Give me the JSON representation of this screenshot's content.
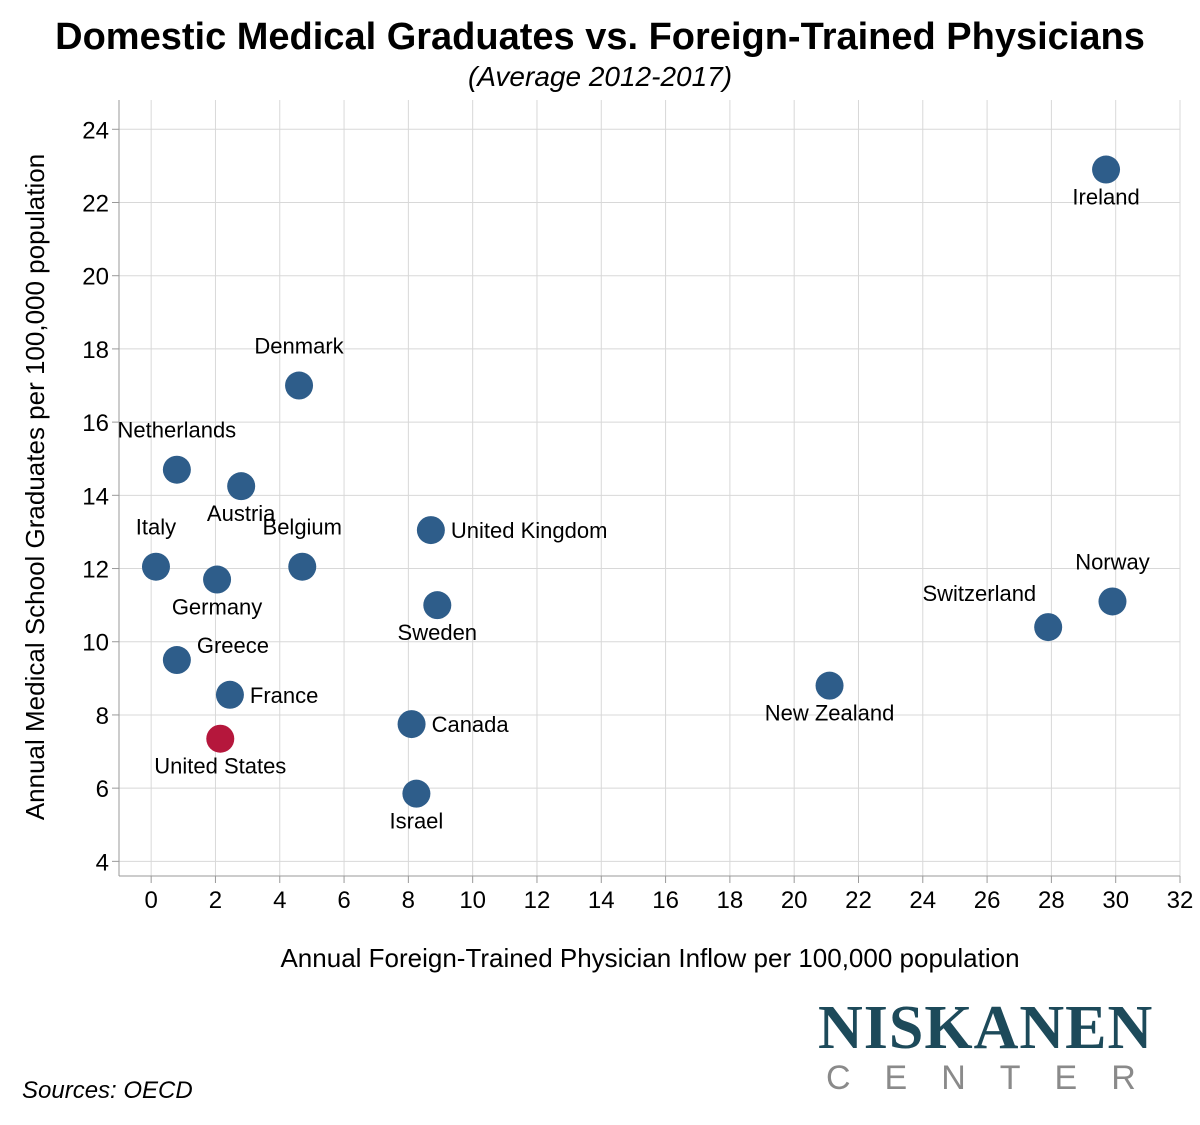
{
  "chart_data": {
    "type": "scatter",
    "title": "Domestic Medical Graduates vs. Foreign-Trained Physicians",
    "subtitle": "(Average 2012-2017)",
    "xlabel": "Annual Foreign-Trained Physician Inflow per 100,000 population",
    "ylabel": "Annual Medical School Graduates per 100,000 population",
    "xlim": [
      -1,
      32
    ],
    "ylim": [
      3.6,
      24.8
    ],
    "xticks": [
      0,
      2,
      4,
      6,
      8,
      10,
      12,
      14,
      16,
      18,
      20,
      22,
      24,
      26,
      28,
      30,
      32
    ],
    "yticks": [
      4,
      6,
      8,
      10,
      12,
      14,
      16,
      18,
      20,
      22,
      24
    ],
    "grid": true,
    "colors": {
      "default": "#2e5d8a",
      "highlight": "#b5173c",
      "grid": "#d8d8d8"
    },
    "points": [
      {
        "label": "Ireland",
        "x": 29.7,
        "y": 22.9,
        "label_pos": "below"
      },
      {
        "label": "Denmark",
        "x": 4.6,
        "y": 17.0,
        "label_pos": "above"
      },
      {
        "label": "Netherlands",
        "x": 0.8,
        "y": 14.7,
        "label_pos": "above"
      },
      {
        "label": "Austria",
        "x": 2.8,
        "y": 14.25,
        "label_pos": "below"
      },
      {
        "label": "United Kingdom",
        "x": 8.7,
        "y": 13.05,
        "label_pos": "right"
      },
      {
        "label": "Italy",
        "x": 0.15,
        "y": 12.05,
        "label_pos": "above"
      },
      {
        "label": "Belgium",
        "x": 4.7,
        "y": 12.05,
        "label_pos": "above"
      },
      {
        "label": "Germany",
        "x": 2.05,
        "y": 11.7,
        "label_pos": "below"
      },
      {
        "label": "Sweden",
        "x": 8.9,
        "y": 11.0,
        "label_pos": "below"
      },
      {
        "label": "Norway",
        "x": 29.9,
        "y": 11.1,
        "label_pos": "above"
      },
      {
        "label": "Switzerland",
        "x": 27.9,
        "y": 10.4,
        "label_pos": "upper-left"
      },
      {
        "label": "Greece",
        "x": 0.8,
        "y": 9.5,
        "label_pos": "right-up"
      },
      {
        "label": "New Zealand",
        "x": 21.1,
        "y": 8.8,
        "label_pos": "below"
      },
      {
        "label": "France",
        "x": 2.45,
        "y": 8.55,
        "label_pos": "right"
      },
      {
        "label": "Canada",
        "x": 8.1,
        "y": 7.75,
        "label_pos": "right"
      },
      {
        "label": "United States",
        "x": 2.15,
        "y": 7.35,
        "label_pos": "below",
        "highlight": true
      },
      {
        "label": "Israel",
        "x": 8.25,
        "y": 5.85,
        "label_pos": "below"
      }
    ]
  },
  "footer": {
    "source": "Sources: OECD",
    "logo_word": "NISKANEN",
    "logo_sub": "CENTER"
  }
}
